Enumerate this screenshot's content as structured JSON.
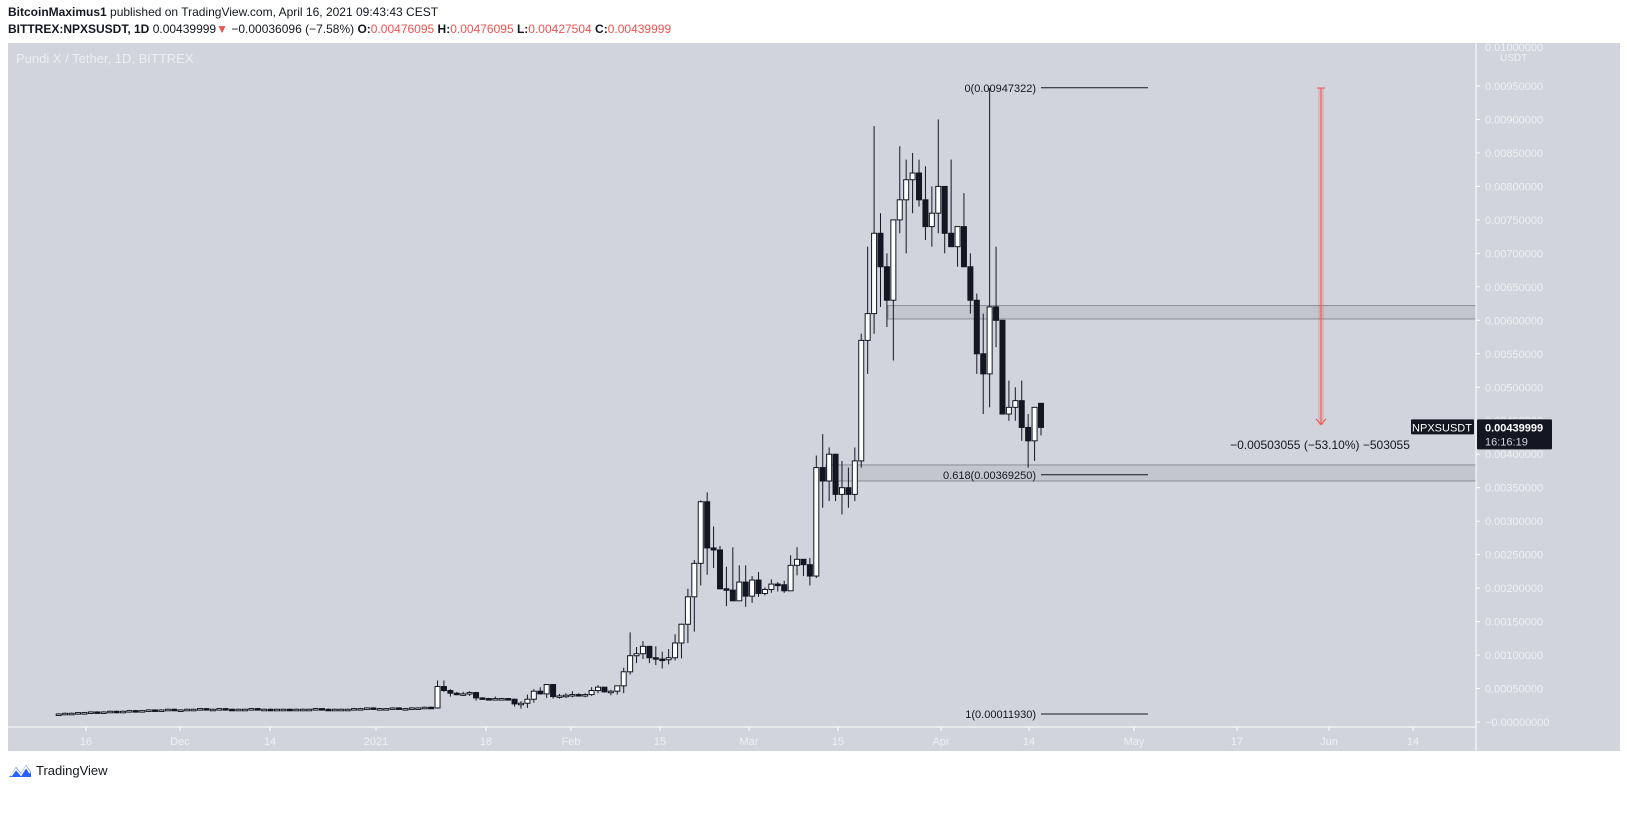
{
  "header": {
    "author": "BitcoinMaximus1",
    "published_text": " published on TradingView.com, April 16, 2021 09:43:43 CEST",
    "symbol": "BITTREX:NPXSUSDT, 1D",
    "last": "0.00439999",
    "change_arrow": "▼",
    "change": "−0.00036096 (−7.58%)",
    "o_label": "O:",
    "o": "0.00476095",
    "h_label": "H:",
    "h": "0.00476095",
    "l_label": "L:",
    "l": "0.00427504",
    "c_label": "C:",
    "c": "0.00439999"
  },
  "pane": {
    "title": "Pundi X / Tether, 1D, BITTREX",
    "currency": "USDT"
  },
  "footer": {
    "brand": "TradingView"
  },
  "colors": {
    "background": "#d1d4dc",
    "up_body": "#ffffff",
    "down_body": "#131722",
    "wick": "#131722",
    "axis_text": "#eef0f4",
    "measure": "#ef5350",
    "zone_fill": "#c3c6cf",
    "zone_border": "#8a8d96",
    "label_bg": "#131722"
  },
  "chart_data": {
    "type": "candlestick",
    "title": "Pundi X / Tether, 1D, BITTREX",
    "symbol": "NPXSUSDT",
    "xlabel": "",
    "ylabel": "USDT",
    "ylim": [
      -0.0001,
      0.01
    ],
    "y_ticks": [
      "0.00950000",
      "0.00900000",
      "0.00850000",
      "0.00800000",
      "0.00750000",
      "0.00700000",
      "0.00650000",
      "0.00600000",
      "0.00550000",
      "0.00500000",
      "0.00450000",
      "0.00400000",
      "0.00350000",
      "0.00300000",
      "0.00250000",
      "0.00200000",
      "0.00150000",
      "0.00100000",
      "0.00050000",
      "−0.00000000"
    ],
    "x_ticks": [
      "16",
      "Dec",
      "14",
      "2021",
      "18",
      "Feb",
      "15",
      "Mar",
      "15",
      "Apr",
      "14",
      "May",
      "17",
      "Jun",
      "14"
    ],
    "last_price_label": {
      "symbol": "NPXSUSDT",
      "price": "0.00439999",
      "countdown": "16:16:19"
    },
    "fib_levels": [
      {
        "label": "0(0.00947322)",
        "value": 0.00947322
      },
      {
        "label": "0.618(0.00369250)",
        "value": 0.0036925
      },
      {
        "label": "1(0.00011930)",
        "value": 0.0001193
      }
    ],
    "zones": [
      {
        "name": "resistance",
        "low": 0.00602,
        "high": 0.00622
      },
      {
        "name": "support",
        "low": 0.0036,
        "high": 0.00384
      }
    ],
    "measure": {
      "from": 0.00947,
      "to": 0.00444,
      "label": "−0.00503055 (−53.10%) −503055"
    },
    "candles_ohlc": [
      [
        0.00012,
        0.00013,
        0.00011,
        0.00012
      ],
      [
        0.00012,
        0.00014,
        0.00011,
        0.00013
      ],
      [
        0.00013,
        0.00014,
        0.00012,
        0.00013
      ],
      [
        0.00013,
        0.00015,
        0.00012,
        0.00014
      ],
      [
        0.00014,
        0.00015,
        0.00013,
        0.00014
      ],
      [
        0.00014,
        0.00016,
        0.00013,
        0.00015
      ],
      [
        0.00015,
        0.00016,
        0.00013,
        0.00014
      ],
      [
        0.00014,
        0.00016,
        0.00013,
        0.00015
      ],
      [
        0.00015,
        0.00017,
        0.00014,
        0.00016
      ],
      [
        0.00016,
        0.00017,
        0.00014,
        0.00015
      ],
      [
        0.00015,
        0.00017,
        0.00014,
        0.00016
      ],
      [
        0.00016,
        0.00018,
        0.00015,
        0.00017
      ],
      [
        0.00017,
        0.00018,
        0.00015,
        0.00016
      ],
      [
        0.00016,
        0.00018,
        0.00015,
        0.00017
      ],
      [
        0.00017,
        0.00019,
        0.00016,
        0.00018
      ],
      [
        0.00018,
        0.00019,
        0.00016,
        0.00017
      ],
      [
        0.00017,
        0.00019,
        0.00016,
        0.00018
      ],
      [
        0.00018,
        0.0002,
        0.00017,
        0.00019
      ],
      [
        0.00019,
        0.0002,
        0.00017,
        0.00018
      ],
      [
        0.00018,
        0.00019,
        0.00017,
        0.00018
      ],
      [
        0.00018,
        0.0002,
        0.00017,
        0.00019
      ],
      [
        0.00019,
        0.0002,
        0.00018,
        0.00019
      ],
      [
        0.00019,
        0.00021,
        0.00018,
        0.0002
      ],
      [
        0.0002,
        0.00021,
        0.00018,
        0.00019
      ],
      [
        0.00019,
        0.0002,
        0.00018,
        0.00019
      ],
      [
        0.00019,
        0.00021,
        0.00018,
        0.0002
      ],
      [
        0.0002,
        0.00021,
        0.00018,
        0.00019
      ],
      [
        0.00019,
        0.0002,
        0.00017,
        0.00018
      ],
      [
        0.00018,
        0.0002,
        0.00017,
        0.00019
      ],
      [
        0.00019,
        0.0002,
        0.00018,
        0.00019
      ],
      [
        0.00019,
        0.00021,
        0.00018,
        0.0002
      ],
      [
        0.0002,
        0.00021,
        0.00018,
        0.00019
      ],
      [
        0.00019,
        0.0002,
        0.00018,
        0.00019
      ],
      [
        0.00019,
        0.0002,
        0.00017,
        0.00018
      ],
      [
        0.00018,
        0.0002,
        0.00017,
        0.00019
      ],
      [
        0.00019,
        0.0002,
        0.00018,
        0.00019
      ],
      [
        0.00019,
        0.0002,
        0.00017,
        0.00018
      ],
      [
        0.00018,
        0.0002,
        0.00017,
        0.00019
      ],
      [
        0.00019,
        0.0002,
        0.00018,
        0.00019
      ],
      [
        0.00019,
        0.0002,
        0.00018,
        0.00019
      ],
      [
        0.00019,
        0.00021,
        0.00018,
        0.0002
      ],
      [
        0.0002,
        0.00021,
        0.00018,
        0.00019
      ],
      [
        0.00019,
        0.0002,
        0.00017,
        0.00018
      ],
      [
        0.00018,
        0.0002,
        0.00017,
        0.00019
      ],
      [
        0.00019,
        0.0002,
        0.00018,
        0.00019
      ],
      [
        0.00019,
        0.0002,
        0.00018,
        0.00019
      ],
      [
        0.00019,
        0.00021,
        0.00018,
        0.0002
      ],
      [
        0.0002,
        0.00021,
        0.00019,
        0.0002
      ],
      [
        0.0002,
        0.00022,
        0.00019,
        0.00021
      ],
      [
        0.00021,
        0.00022,
        0.00019,
        0.0002
      ],
      [
        0.0002,
        0.00021,
        0.00019,
        0.0002
      ],
      [
        0.0002,
        0.00021,
        0.00019,
        0.0002
      ],
      [
        0.0002,
        0.00022,
        0.00019,
        0.00021
      ],
      [
        0.00021,
        0.00022,
        0.00019,
        0.0002
      ],
      [
        0.0002,
        0.00021,
        0.00019,
        0.0002
      ],
      [
        0.0002,
        0.00022,
        0.00019,
        0.00021
      ],
      [
        0.00021,
        0.00022,
        0.0002,
        0.00021
      ],
      [
        0.00021,
        0.00023,
        0.0002,
        0.00022
      ],
      [
        0.00022,
        0.00023,
        0.0002,
        0.00021
      ],
      [
        0.00021,
        0.00062,
        0.0002,
        0.00053
      ],
      [
        0.00053,
        0.00062,
        0.00045,
        0.00047
      ],
      [
        0.00047,
        0.00049,
        0.00038,
        0.00043
      ],
      [
        0.00043,
        0.00045,
        0.0004,
        0.00041
      ],
      [
        0.00041,
        0.00045,
        0.00039,
        0.00042
      ],
      [
        0.00042,
        0.00046,
        0.00039,
        0.00044
      ],
      [
        0.00044,
        0.00045,
        0.00032,
        0.00036
      ],
      [
        0.00036,
        0.00037,
        0.00034,
        0.00035
      ],
      [
        0.00035,
        0.00036,
        0.00033,
        0.00034
      ],
      [
        0.00034,
        0.00038,
        0.00033,
        0.00035
      ],
      [
        0.00035,
        0.00036,
        0.00034,
        0.00035
      ],
      [
        0.00035,
        0.00036,
        0.00033,
        0.00034
      ],
      [
        0.00034,
        0.00035,
        0.00023,
        0.00027
      ],
      [
        0.00027,
        0.00031,
        0.0002,
        0.00028
      ],
      [
        0.00028,
        0.00041,
        0.00021,
        0.00034
      ],
      [
        0.00034,
        0.00049,
        0.00029,
        0.00046
      ],
      [
        0.00046,
        0.00052,
        0.00041,
        0.00042
      ],
      [
        0.00042,
        0.00055,
        0.00036,
        0.00056
      ],
      [
        0.00056,
        0.00055,
        0.00035,
        0.00038
      ],
      [
        0.00038,
        0.00042,
        0.00035,
        0.00039
      ],
      [
        0.00039,
        0.00043,
        0.00036,
        0.0004
      ],
      [
        0.0004,
        0.00046,
        0.00037,
        0.00041
      ],
      [
        0.00041,
        0.00043,
        0.00038,
        0.0004
      ],
      [
        0.0004,
        0.00043,
        0.00037,
        0.00041
      ],
      [
        0.00041,
        0.00052,
        0.00039,
        0.00047
      ],
      [
        0.00047,
        0.00055,
        0.00043,
        0.00052
      ],
      [
        0.00052,
        0.00052,
        0.00044,
        0.00045
      ],
      [
        0.00045,
        0.00048,
        0.0004,
        0.00046
      ],
      [
        0.00046,
        0.00054,
        0.00041,
        0.00054
      ],
      [
        0.00054,
        0.00081,
        0.00043,
        0.00075
      ],
      [
        0.00075,
        0.00134,
        0.00071,
        0.00099
      ],
      [
        0.00099,
        0.00112,
        0.00088,
        0.00102
      ],
      [
        0.00102,
        0.00121,
        0.00094,
        0.00113
      ],
      [
        0.00113,
        0.00112,
        0.00088,
        0.00096
      ],
      [
        0.00096,
        0.00113,
        0.00085,
        0.00094
      ],
      [
        0.00094,
        0.00105,
        0.0008,
        0.00093
      ],
      [
        0.00093,
        0.00109,
        0.00086,
        0.00096
      ],
      [
        0.00096,
        0.00131,
        0.00092,
        0.00118
      ],
      [
        0.00118,
        0.00147,
        0.00095,
        0.00146
      ],
      [
        0.00146,
        0.00199,
        0.00118,
        0.00187
      ],
      [
        0.00187,
        0.00242,
        0.00135,
        0.00237
      ],
      [
        0.00237,
        0.00331,
        0.00204,
        0.00329
      ],
      [
        0.00329,
        0.00343,
        0.0022,
        0.0026
      ],
      [
        0.0026,
        0.00292,
        0.0023,
        0.00257
      ],
      [
        0.00257,
        0.00263,
        0.00198,
        0.00199
      ],
      [
        0.00199,
        0.00232,
        0.00173,
        0.00197
      ],
      [
        0.00197,
        0.00261,
        0.00194,
        0.00181
      ],
      [
        0.00181,
        0.00234,
        0.00181,
        0.00209
      ],
      [
        0.00209,
        0.00234,
        0.00172,
        0.00188
      ],
      [
        0.00188,
        0.00218,
        0.00178,
        0.00212
      ],
      [
        0.00212,
        0.00224,
        0.00187,
        0.00192
      ],
      [
        0.00192,
        0.00201,
        0.00189,
        0.00198
      ],
      [
        0.00198,
        0.00213,
        0.00193,
        0.00206
      ],
      [
        0.00206,
        0.00209,
        0.00195,
        0.00205
      ],
      [
        0.00205,
        0.00211,
        0.00193,
        0.00196
      ],
      [
        0.00196,
        0.00249,
        0.00196,
        0.00234
      ],
      [
        0.00234,
        0.00261,
        0.00219,
        0.00243
      ],
      [
        0.00243,
        0.00243,
        0.00218,
        0.00235
      ],
      [
        0.00235,
        0.00245,
        0.00204,
        0.00218
      ],
      [
        0.00218,
        0.00398,
        0.00215,
        0.0038
      ],
      [
        0.0038,
        0.0043,
        0.0032,
        0.0036
      ],
      [
        0.0036,
        0.0041,
        0.0033,
        0.004
      ],
      [
        0.004,
        0.004,
        0.0033,
        0.0034
      ],
      [
        0.0034,
        0.0039,
        0.0031,
        0.0035
      ],
      [
        0.0035,
        0.0038,
        0.0032,
        0.0034
      ],
      [
        0.0034,
        0.0041,
        0.0033,
        0.0039
      ],
      [
        0.0039,
        0.0058,
        0.0038,
        0.0057
      ],
      [
        0.0057,
        0.0071,
        0.0052,
        0.0061
      ],
      [
        0.0061,
        0.0089,
        0.0058,
        0.0073
      ],
      [
        0.0073,
        0.0076,
        0.0062,
        0.0068
      ],
      [
        0.0068,
        0.007,
        0.0059,
        0.0063
      ],
      [
        0.0063,
        0.0075,
        0.0054,
        0.0075
      ],
      [
        0.0075,
        0.0086,
        0.0073,
        0.0078
      ],
      [
        0.0078,
        0.0084,
        0.007,
        0.0081
      ],
      [
        0.0081,
        0.0085,
        0.0076,
        0.0082
      ],
      [
        0.0082,
        0.0084,
        0.0077,
        0.0078
      ],
      [
        0.0078,
        0.0083,
        0.0072,
        0.0074
      ],
      [
        0.0074,
        0.008,
        0.0071,
        0.0076
      ],
      [
        0.0076,
        0.009,
        0.0073,
        0.008
      ],
      [
        0.008,
        0.0078,
        0.007,
        0.0073
      ],
      [
        0.0073,
        0.0084,
        0.0071,
        0.0071
      ],
      [
        0.0071,
        0.0074,
        0.0068,
        0.0074
      ],
      [
        0.0074,
        0.0079,
        0.0069,
        0.0068
      ],
      [
        0.0068,
        0.007,
        0.0061,
        0.0063
      ],
      [
        0.0063,
        0.0064,
        0.0052,
        0.0055
      ],
      [
        0.0055,
        0.0061,
        0.0046,
        0.0052
      ],
      [
        0.0052,
        0.00947,
        0.0047,
        0.0062
      ],
      [
        0.0062,
        0.0071,
        0.0056,
        0.006
      ],
      [
        0.006,
        0.006,
        0.0046,
        0.0046
      ],
      [
        0.0046,
        0.0051,
        0.0045,
        0.0047
      ],
      [
        0.0047,
        0.005,
        0.0045,
        0.0048
      ],
      [
        0.0048,
        0.0051,
        0.0042,
        0.0044
      ],
      [
        0.0044,
        0.0046,
        0.0038,
        0.0042
      ],
      [
        0.0042,
        0.0047,
        0.0039,
        0.0047
      ],
      [
        0.00476,
        0.00476,
        0.00428,
        0.0044
      ]
    ]
  }
}
